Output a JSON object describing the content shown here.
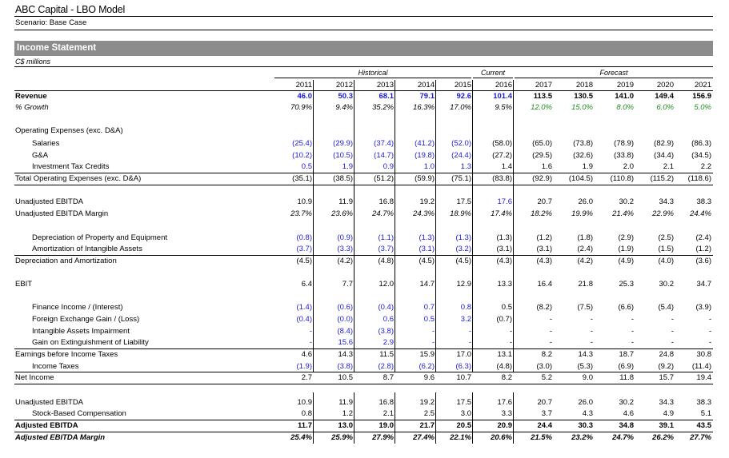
{
  "header": {
    "title": "ABC Capital - LBO Model",
    "scenario": "Scenario: Base Case"
  },
  "section": {
    "title": "Income Statement",
    "units": "C$ millions"
  },
  "groups": {
    "historical": "Historical",
    "current": "Current",
    "forecast": "Forecast"
  },
  "years": [
    "2011",
    "2012",
    "2013",
    "2014",
    "2015",
    "2016",
    "2017",
    "2018",
    "2019",
    "2020",
    "2021"
  ],
  "colors": {
    "input_blue": "#1a1ad6",
    "growth_green": "#1e8a1e",
    "section_bar": "#8c8c8c"
  },
  "rows": [
    {
      "key": "revenue",
      "label": "Revenue",
      "values": [
        "46.0",
        "50.3",
        "68.1",
        "79.1",
        "92.6",
        "101.4",
        "113.5",
        "130.5",
        "141.0",
        "149.4",
        "156.9"
      ]
    },
    {
      "key": "growth",
      "label": "% Growth",
      "values": [
        "70.9%",
        "9.4%",
        "35.2%",
        "16.3%",
        "17.0%",
        "9.5%",
        "12.0%",
        "15.0%",
        "8.0%",
        "6.0%",
        "5.0%"
      ]
    },
    {
      "key": "opex_hdr",
      "label": "Operating Expenses (exc. D&A)",
      "values": []
    },
    {
      "key": "salaries",
      "label": "Salaries",
      "values": [
        "(25.4)",
        "(29.9)",
        "(37.4)",
        "(41.2)",
        "(52.0)",
        "(58.0)",
        "(65.0)",
        "(73.8)",
        "(78.9)",
        "(82.9)",
        "(86.3)"
      ]
    },
    {
      "key": "gna",
      "label": "G&A",
      "values": [
        "(10.2)",
        "(10.5)",
        "(14.7)",
        "(19.8)",
        "(24.4)",
        "(27.2)",
        "(29.5)",
        "(32.6)",
        "(33.8)",
        "(34.4)",
        "(34.5)"
      ]
    },
    {
      "key": "itc",
      "label": "Investment Tax Credits",
      "values": [
        "0.5",
        "1.9",
        "0.9",
        "1.0",
        "1.3",
        "1.4",
        "1.6",
        "1.9",
        "2.0",
        "2.1",
        "2.2"
      ]
    },
    {
      "key": "total_opex",
      "label": "Total Operating Expenses (exc. D&A)",
      "values": [
        "(35.1)",
        "(38.5)",
        "(51.2)",
        "(59.9)",
        "(75.1)",
        "(83.8)",
        "(92.9)",
        "(104.5)",
        "(110.8)",
        "(115.2)",
        "(118.6)"
      ]
    },
    {
      "key": "ebitda",
      "label": "Unadjusted EBITDA",
      "values": [
        "10.9",
        "11.9",
        "16.8",
        "19.2",
        "17.5",
        "17.6",
        "20.7",
        "26.0",
        "30.2",
        "34.3",
        "38.3"
      ]
    },
    {
      "key": "ebitda_margin",
      "label": "Unadjusted EBITDA Margin",
      "values": [
        "23.7%",
        "23.6%",
        "24.7%",
        "24.3%",
        "18.9%",
        "17.4%",
        "18.2%",
        "19.9%",
        "21.4%",
        "22.9%",
        "24.4%"
      ]
    },
    {
      "key": "dep_ppe",
      "label": "Depreciation of Property and Equipment",
      "values": [
        "(0.8)",
        "(0.9)",
        "(1.1)",
        "(1.3)",
        "(1.3)",
        "(1.3)",
        "(1.2)",
        "(1.8)",
        "(2.9)",
        "(2.5)",
        "(2.4)"
      ]
    },
    {
      "key": "amort",
      "label": "Amortization of Intangible Assets",
      "values": [
        "(3.7)",
        "(3.3)",
        "(3.7)",
        "(3.1)",
        "(3.2)",
        "(3.1)",
        "(3.1)",
        "(2.4)",
        "(1.9)",
        "(1.5)",
        "(1.2)"
      ]
    },
    {
      "key": "da",
      "label": "Depreciation and Amortization",
      "values": [
        "(4.5)",
        "(4.2)",
        "(4.8)",
        "(4.5)",
        "(4.5)",
        "(4.3)",
        "(4.3)",
        "(4.2)",
        "(4.9)",
        "(4.0)",
        "(3.6)"
      ]
    },
    {
      "key": "ebit",
      "label": "EBIT",
      "values": [
        "6.4",
        "7.7",
        "12.0",
        "14.7",
        "12.9",
        "13.3",
        "16.4",
        "21.8",
        "25.3",
        "30.2",
        "34.7"
      ]
    },
    {
      "key": "finance",
      "label": "Finance Income / (Interest)",
      "values": [
        "(1.4)",
        "(0.6)",
        "(0.4)",
        "0.7",
        "0.8",
        "0.5",
        "(8.2)",
        "(7.5)",
        "(6.6)",
        "(5.4)",
        "(3.9)"
      ]
    },
    {
      "key": "fx",
      "label": "Foreign Exchange Gain / (Loss)",
      "values": [
        "(0.4)",
        "(0.0)",
        "0.6",
        "0.5",
        "3.2",
        "(0.7)",
        "-",
        "-",
        "-",
        "-",
        "-"
      ]
    },
    {
      "key": "impair",
      "label": "Intangible Assets Impairment",
      "values": [
        "-",
        "(8.4)",
        "(3.8)",
        "-",
        "-",
        "-",
        "-",
        "-",
        "-",
        "-",
        "-"
      ]
    },
    {
      "key": "gain_ext",
      "label": "Gain on Extinguishment of Liability",
      "values": [
        "-",
        "15.6",
        "2.9",
        "-",
        "-",
        "-",
        "-",
        "-",
        "-",
        "-",
        "-"
      ]
    },
    {
      "key": "ebt",
      "label": "Earnings before Income Taxes",
      "values": [
        "4.6",
        "14.3",
        "11.5",
        "15.9",
        "17.0",
        "13.1",
        "8.2",
        "14.3",
        "18.7",
        "24.8",
        "30.8"
      ]
    },
    {
      "key": "tax",
      "label": "Income Taxes",
      "values": [
        "(1.9)",
        "(3.8)",
        "(2.8)",
        "(6.2)",
        "(6.3)",
        "(4.8)",
        "(3.0)",
        "(5.3)",
        "(6.9)",
        "(9.2)",
        "(11.4)"
      ]
    },
    {
      "key": "ni",
      "label": "Net Income",
      "values": [
        "2.7",
        "10.5",
        "8.7",
        "9.6",
        "10.7",
        "8.2",
        "5.2",
        "9.0",
        "11.8",
        "15.7",
        "19.4"
      ]
    },
    {
      "key": "ebitda2",
      "label": "Unadjusted EBITDA",
      "values": [
        "10.9",
        "11.9",
        "16.8",
        "19.2",
        "17.5",
        "17.6",
        "20.7",
        "26.0",
        "30.2",
        "34.3",
        "38.3"
      ]
    },
    {
      "key": "sbc",
      "label": "Stock-Based Compensation",
      "values": [
        "0.8",
        "1.2",
        "2.1",
        "2.5",
        "3.0",
        "3.3",
        "3.7",
        "4.3",
        "4.6",
        "4.9",
        "5.1"
      ]
    },
    {
      "key": "adj_ebitda",
      "label": "Adjusted EBITDA",
      "values": [
        "11.7",
        "13.0",
        "19.0",
        "21.7",
        "20.5",
        "20.9",
        "24.4",
        "30.3",
        "34.8",
        "39.1",
        "43.5"
      ]
    },
    {
      "key": "adj_margin",
      "label": "Adjusted EBITDA Margin",
      "values": [
        "25.4%",
        "25.9%",
        "27.9%",
        "27.4%",
        "22.1%",
        "20.6%",
        "21.5%",
        "23.2%",
        "24.7%",
        "26.2%",
        "27.7%"
      ]
    }
  ]
}
